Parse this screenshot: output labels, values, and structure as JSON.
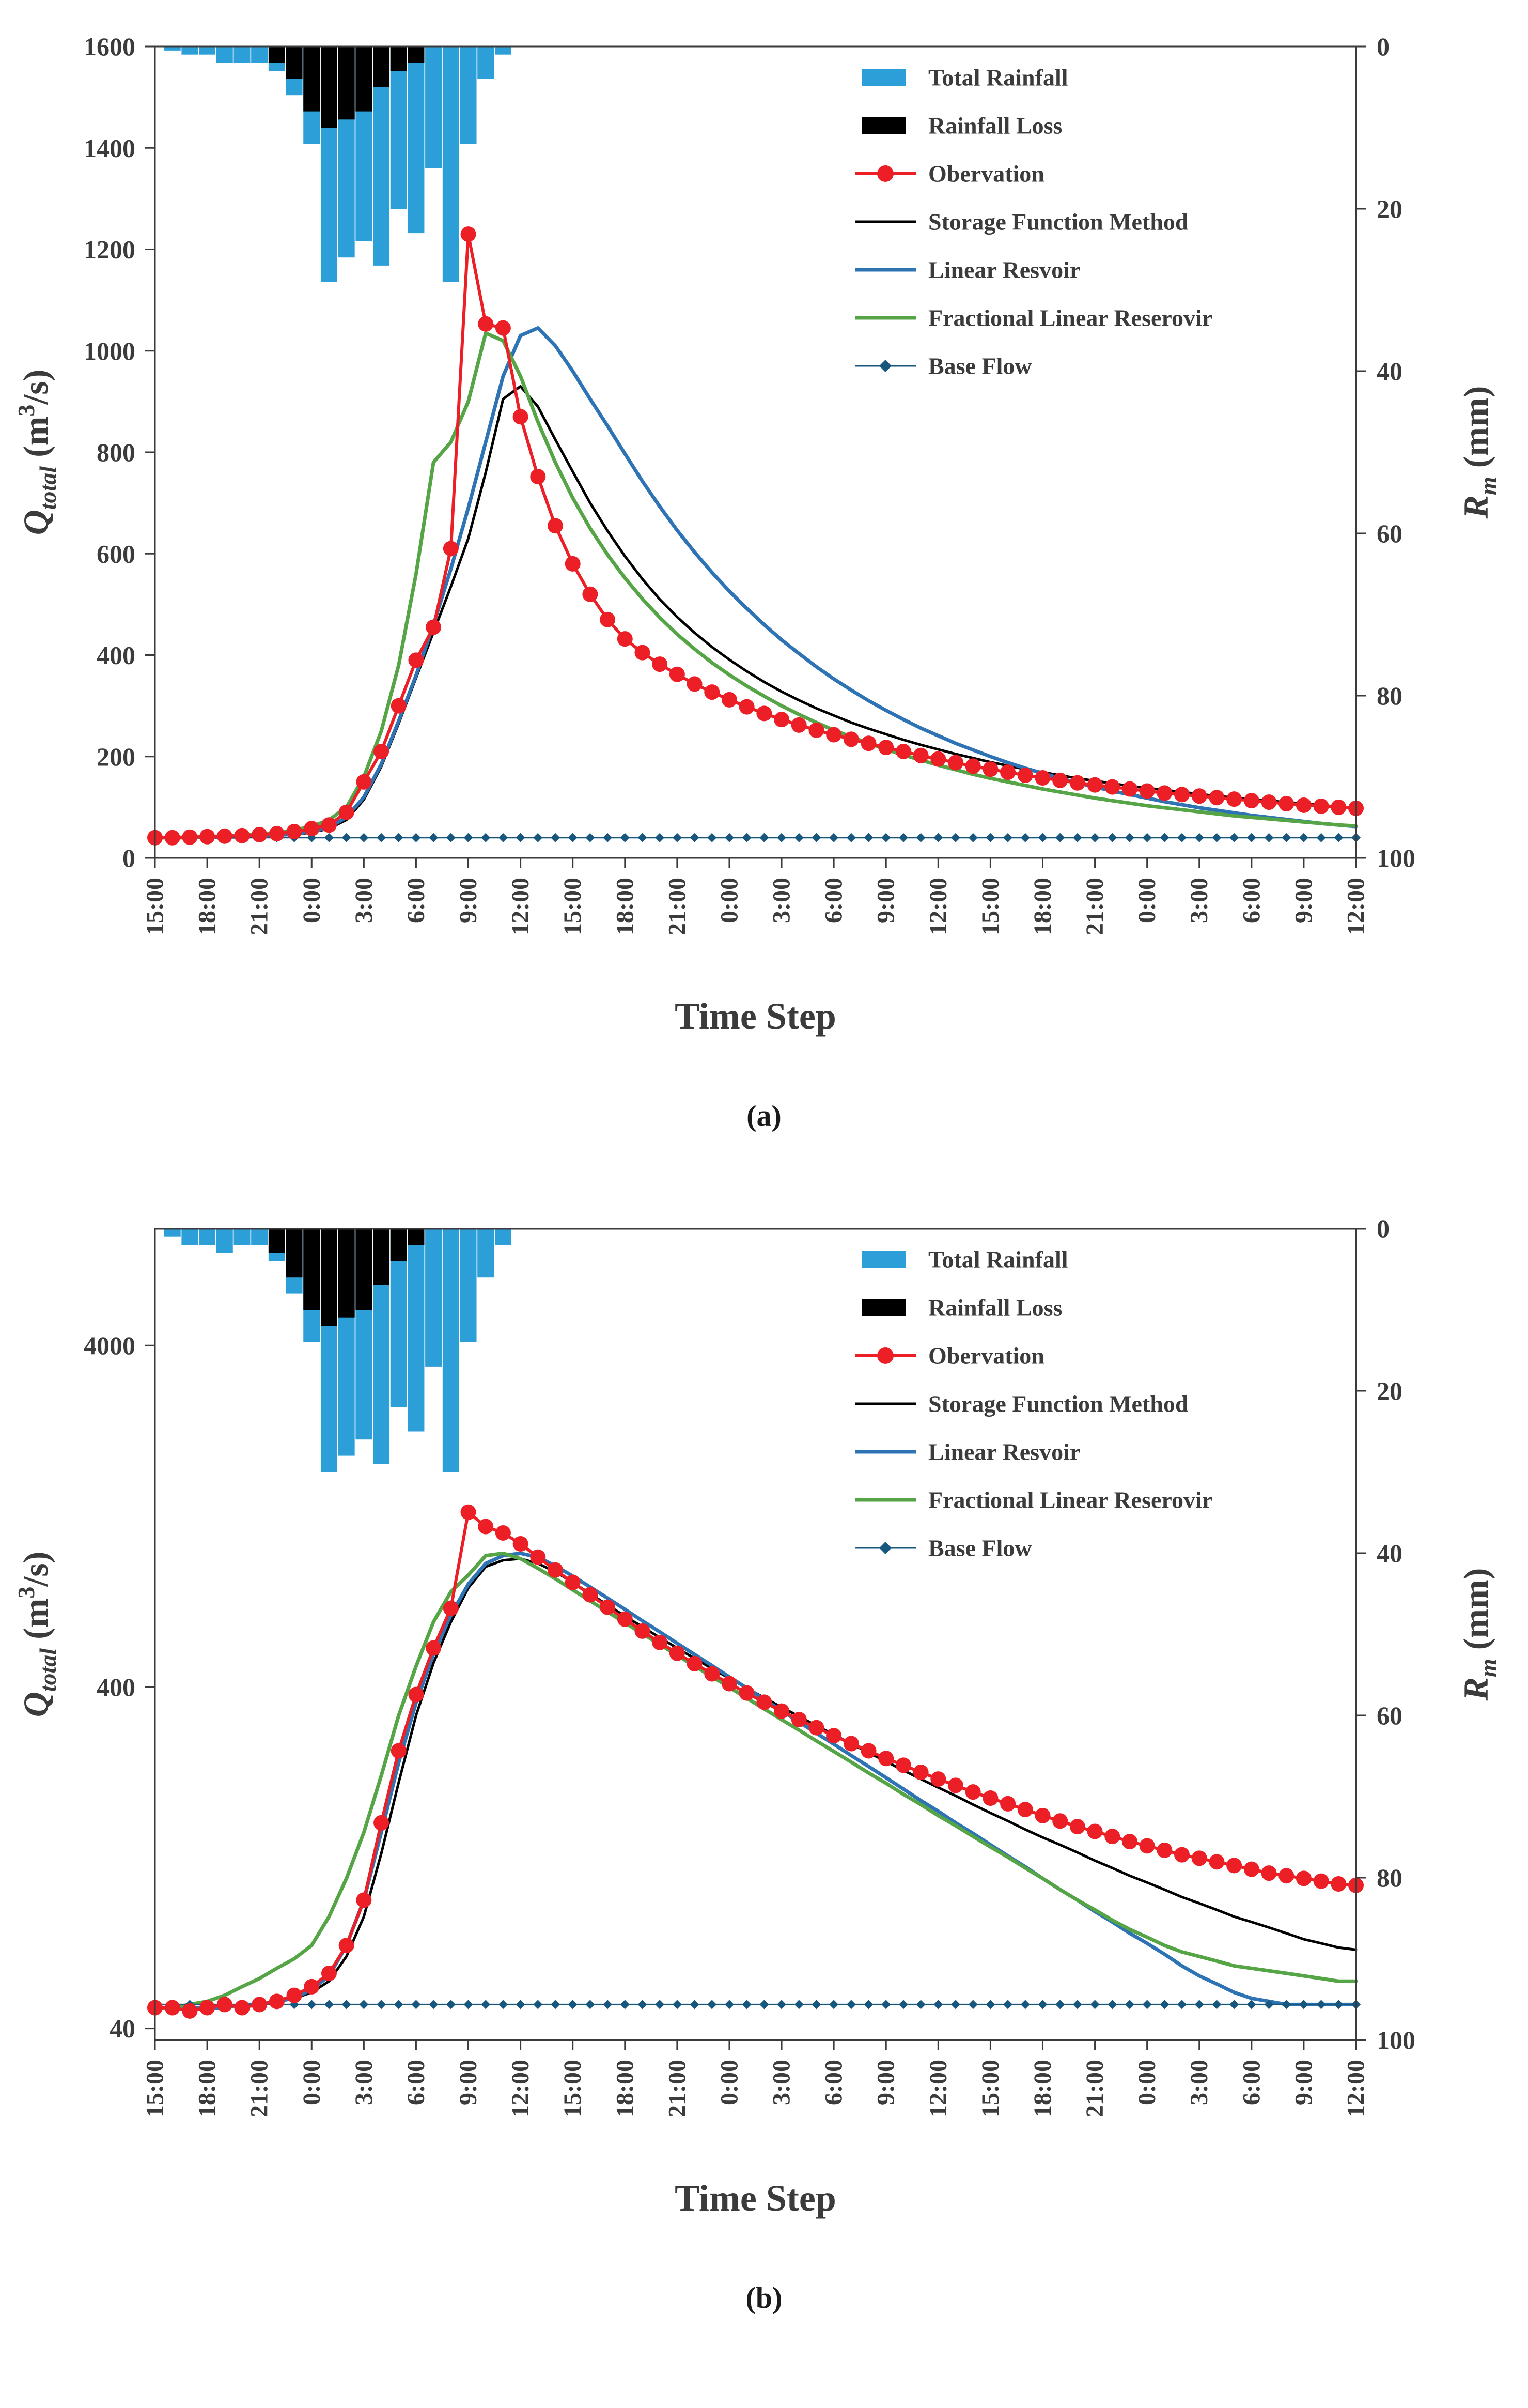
{
  "chart_data": [
    {
      "type": "combo-dual-axis",
      "panel_label": "(a)",
      "xlabel": "Time Step",
      "n_points": 70,
      "x_tick_labels": [
        "15:00",
        "18:00",
        "21:00",
        "0:00",
        "3:00",
        "6:00",
        "9:00",
        "12:00",
        "15:00",
        "18:00",
        "21:00",
        "0:00",
        "3:00",
        "6:00",
        "9:00",
        "12:00",
        "15:00",
        "18:00",
        "21:00",
        "0:00",
        "3:00",
        "6:00",
        "9:00",
        "12:00"
      ],
      "left_axis": {
        "scale": "linear",
        "min": 0,
        "max": 1600,
        "ticks": [
          0,
          200,
          400,
          600,
          800,
          1000,
          1200,
          1400,
          1600
        ],
        "label": {
          "main": "Q",
          "sub": "total",
          "after": " (m",
          "sup": "3",
          "after2": "/s)"
        }
      },
      "right_axis": {
        "scale": "inverted",
        "min": 0,
        "max": 100,
        "ticks": [
          0,
          20,
          40,
          60,
          80,
          100
        ],
        "label": {
          "main": "R",
          "sub": "m",
          "after": " (mm)",
          "sup": "",
          "after2": ""
        }
      },
      "series": [
        {
          "name": "Total Rainfall",
          "type": "bar",
          "axis": "right",
          "color": "#2D9FD8",
          "values": [
            0,
            0.5,
            1,
            1,
            2,
            2,
            2,
            3,
            6,
            12,
            29,
            26,
            24,
            27,
            20,
            23,
            15,
            29,
            12,
            4,
            1
          ]
        },
        {
          "name": "Rainfall Loss",
          "type": "bar",
          "axis": "right",
          "color": "#000000",
          "values": [
            0,
            0,
            0,
            0,
            0,
            0,
            0,
            2,
            4,
            8,
            10,
            9,
            8,
            5,
            3,
            2
          ]
        },
        {
          "name": "Obervation",
          "type": "line-marker",
          "axis": "left",
          "color": "#EC1F26",
          "stroke_width": 6,
          "values": [
            40,
            40,
            41,
            42,
            43,
            44,
            46,
            48,
            52,
            58,
            65,
            90,
            150,
            210,
            300,
            390,
            455,
            610,
            1230,
            1053,
            1045,
            870,
            752,
            655,
            580,
            520,
            470,
            432,
            405,
            382,
            362,
            343,
            327,
            312,
            298,
            285,
            273,
            262,
            252,
            243,
            234,
            226,
            218,
            210,
            202,
            195,
            188,
            181,
            175,
            169,
            163,
            158,
            153,
            148,
            144,
            140,
            136,
            132,
            128,
            125,
            122,
            119,
            116,
            113,
            110,
            107,
            104,
            102,
            100,
            98
          ]
        },
        {
          "name": "Storage Function Method",
          "type": "line",
          "axis": "left",
          "color": "#000000",
          "stroke_width": 5,
          "values": [
            40,
            40,
            40,
            41,
            41,
            42,
            43,
            44,
            46,
            50,
            58,
            75,
            115,
            180,
            265,
            355,
            445,
            535,
            630,
            760,
            905,
            930,
            890,
            825,
            762,
            700,
            645,
            595,
            550,
            510,
            475,
            444,
            416,
            391,
            368,
            347,
            328,
            311,
            295,
            281,
            267,
            255,
            244,
            233,
            223,
            214,
            205,
            197,
            189,
            182,
            175,
            169,
            163,
            157,
            152,
            147,
            142,
            138,
            134,
            130,
            126,
            122,
            119,
            116,
            113,
            110,
            107,
            104,
            101,
            98
          ]
        },
        {
          "name": "Linear Resvoir",
          "type": "line",
          "axis": "left",
          "color": "#2E74B5",
          "stroke_width": 7,
          "values": [
            40,
            40,
            40,
            41,
            41,
            42,
            43,
            45,
            47,
            52,
            60,
            80,
            120,
            185,
            270,
            360,
            460,
            570,
            690,
            820,
            950,
            1030,
            1045,
            1010,
            960,
            905,
            852,
            797,
            743,
            693,
            646,
            603,
            563,
            526,
            492,
            460,
            430,
            403,
            377,
            353,
            331,
            310,
            291,
            273,
            256,
            241,
            226,
            213,
            200,
            188,
            177,
            167,
            157,
            148,
            140,
            132,
            125,
            118,
            111,
            105,
            99,
            94,
            89,
            84,
            80,
            76,
            72,
            68,
            65,
            62
          ]
        },
        {
          "name": "Fractional Linear Reserovir",
          "type": "line",
          "axis": "left",
          "color": "#55A546",
          "stroke_width": 7,
          "values": [
            40,
            40,
            41,
            42,
            43,
            45,
            47,
            50,
            55,
            62,
            75,
            100,
            160,
            250,
            380,
            560,
            780,
            820,
            900,
            1035,
            1020,
            950,
            860,
            780,
            710,
            650,
            598,
            552,
            511,
            474,
            441,
            412,
            385,
            361,
            339,
            319,
            300,
            283,
            267,
            252,
            239,
            226,
            214,
            203,
            193,
            183,
            174,
            165,
            157,
            150,
            143,
            136,
            130,
            124,
            118,
            113,
            108,
            103,
            99,
            95,
            91,
            87,
            83,
            80,
            77,
            74,
            71,
            68,
            65,
            63
          ]
        },
        {
          "name": "Base Flow",
          "type": "line-dot",
          "axis": "left",
          "color": "#17577E",
          "stroke_width": 3,
          "constant": 40
        }
      ]
    },
    {
      "type": "combo-dual-axis",
      "panel_label": "(b)",
      "xlabel": "Time Step",
      "n_points": 70,
      "x_tick_labels": [
        "15:00",
        "18:00",
        "21:00",
        "0:00",
        "3:00",
        "6:00",
        "9:00",
        "12:00",
        "15:00",
        "18:00",
        "21:00",
        "0:00",
        "3:00",
        "6:00",
        "9:00",
        "12:00",
        "15:00",
        "18:00",
        "21:00",
        "0:00",
        "3:00",
        "6:00",
        "9:00",
        "12:00"
      ],
      "left_axis": {
        "scale": "log",
        "min": 37,
        "max": 8800,
        "ticks": [
          40,
          400,
          4000
        ],
        "label": {
          "main": "Q",
          "sub": "total",
          "after": " (m",
          "sup": "3",
          "after2": "/s)"
        }
      },
      "right_axis": {
        "scale": "inverted",
        "min": 0,
        "max": 100,
        "ticks": [
          0,
          20,
          40,
          60,
          80,
          100
        ],
        "label": {
          "main": "R",
          "sub": "m",
          "after": " (mm)",
          "sup": "",
          "after2": ""
        }
      },
      "series": [
        {
          "name": "Total Rainfall",
          "type": "bar",
          "axis": "right",
          "color": "#2D9FD8",
          "values": [
            0,
            1,
            2,
            2,
            3,
            2,
            2,
            4,
            8,
            14,
            30,
            28,
            26,
            29,
            22,
            25,
            17,
            30,
            14,
            6,
            2
          ]
        },
        {
          "name": "Rainfall Loss",
          "type": "bar",
          "axis": "right",
          "color": "#000000",
          "values": [
            0,
            0,
            0,
            0,
            0,
            0,
            0,
            3,
            6,
            10,
            12,
            11,
            10,
            7,
            4,
            2
          ]
        },
        {
          "name": "Obervation",
          "type": "line-marker",
          "axis": "left",
          "color": "#EC1F26",
          "stroke_width": 6,
          "values": [
            46,
            46,
            45,
            46,
            47,
            46,
            47,
            48,
            50,
            53,
            58,
            70,
            95,
            160,
            260,
            380,
            520,
            680,
            1300,
            1180,
            1130,
            1050,
            960,
            880,
            810,
            745,
            685,
            632,
            583,
            540,
            502,
            468,
            437,
            409,
            384,
            361,
            340,
            321,
            304,
            288,
            273,
            260,
            247,
            236,
            225,
            215,
            206,
            197,
            189,
            182,
            175,
            168,
            162,
            156,
            151,
            146,
            141,
            137,
            133,
            129,
            126,
            123,
            120,
            117,
            114,
            112,
            110,
            108,
            106,
            105
          ]
        },
        {
          "name": "Storage Function Method",
          "type": "line",
          "axis": "left",
          "color": "#000000",
          "stroke_width": 5,
          "values": [
            46,
            46,
            46,
            46,
            46,
            47,
            47,
            48,
            49,
            51,
            55,
            65,
            85,
            130,
            210,
            330,
            470,
            620,
            780,
            900,
            940,
            950,
            920,
            870,
            810,
            750,
            695,
            645,
            600,
            558,
            520,
            485,
            453,
            424,
            397,
            372,
            349,
            328,
            308,
            290,
            273,
            257,
            242,
            228,
            215,
            203,
            192,
            181,
            171,
            162,
            153,
            145,
            138,
            131,
            124,
            118,
            112,
            107,
            102,
            97,
            93,
            89,
            85,
            82,
            79,
            76,
            73,
            71,
            69,
            68
          ]
        },
        {
          "name": "Linear Resvoir",
          "type": "line",
          "axis": "left",
          "color": "#2E74B5",
          "stroke_width": 7,
          "values": [
            46,
            46,
            46,
            46,
            46,
            47,
            47,
            48,
            49,
            52,
            57,
            70,
            95,
            150,
            240,
            360,
            500,
            650,
            800,
            920,
            970,
            985,
            960,
            905,
            845,
            785,
            728,
            675,
            625,
            580,
            537,
            498,
            462,
            428,
            397,
            368,
            341,
            316,
            293,
            272,
            252,
            234,
            217,
            201,
            186,
            173,
            160,
            149,
            138,
            128,
            119,
            110,
            102,
            95,
            88,
            82,
            76,
            71,
            66,
            61,
            57,
            54,
            51,
            49,
            48,
            47,
            47,
            47,
            47,
            47
          ]
        },
        {
          "name": "Fractional Linear Reserovir",
          "type": "line",
          "axis": "left",
          "color": "#55A546",
          "stroke_width": 7,
          "values": [
            46,
            46,
            47,
            48,
            50,
            53,
            56,
            60,
            64,
            70,
            85,
            110,
            150,
            220,
            330,
            460,
            620,
            760,
            850,
            970,
            985,
            950,
            890,
            830,
            770,
            715,
            664,
            617,
            573,
            533,
            495,
            461,
            429,
            399,
            371,
            345,
            321,
            299,
            278,
            259,
            241,
            224,
            209,
            194,
            181,
            168,
            157,
            146,
            136,
            127,
            118,
            110,
            102,
            95,
            89,
            83,
            78,
            74,
            70,
            67,
            65,
            63,
            61,
            60,
            59,
            58,
            57,
            56,
            55,
            55
          ]
        },
        {
          "name": "Base Flow",
          "type": "line-dot",
          "axis": "left",
          "color": "#17577E",
          "stroke_width": 3,
          "constant": 47
        }
      ]
    }
  ]
}
